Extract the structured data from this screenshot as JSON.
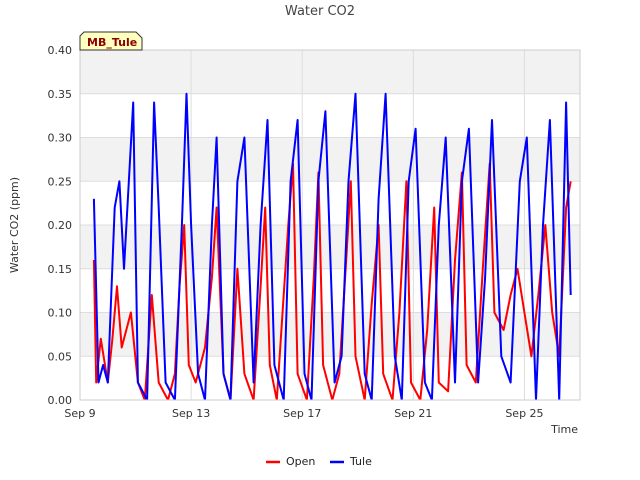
{
  "chart_data": {
    "type": "line",
    "title": "Water CO2",
    "xlabel": "Time",
    "ylabel": "Water CO2 (ppm)",
    "ylim": [
      0,
      0.4
    ],
    "yticks": [
      "0.00",
      "0.05",
      "0.10",
      "0.15",
      "0.20",
      "0.25",
      "0.30",
      "0.35",
      "0.40"
    ],
    "xlim": [
      "2023-09-09",
      "2023-09-27"
    ],
    "xticks": [
      {
        "label": "Sep 9",
        "date": "2023-09-09"
      },
      {
        "label": "Sep 13",
        "date": "2023-09-13"
      },
      {
        "label": "Sep 17",
        "date": "2023-09-17"
      },
      {
        "label": "Sep 21",
        "date": "2023-09-21"
      },
      {
        "label": "Sep 25",
        "date": "2023-09-25"
      }
    ],
    "grid": true,
    "legend": "bottom",
    "site_label": "MB_Tule",
    "series": [
      {
        "name": "Open",
        "color": "#ff0000",
        "points": [
          [
            "2023-09-09 12:00",
            0.16
          ],
          [
            "2023-09-09 14:00",
            0.02
          ],
          [
            "2023-09-09 18:00",
            0.07
          ],
          [
            "2023-09-10 00:00",
            0.02
          ],
          [
            "2023-09-10 04:00",
            0.07
          ],
          [
            "2023-09-10 08:00",
            0.13
          ],
          [
            "2023-09-10 12:00",
            0.06
          ],
          [
            "2023-09-10 20:00",
            0.1
          ],
          [
            "2023-09-11 02:00",
            0.02
          ],
          [
            "2023-09-11 08:00",
            0.0
          ],
          [
            "2023-09-11 14:00",
            0.12
          ],
          [
            "2023-09-11 20:00",
            0.02
          ],
          [
            "2023-09-12 04:00",
            0.0
          ],
          [
            "2023-09-12 10:00",
            0.03
          ],
          [
            "2023-09-12 14:00",
            0.13
          ],
          [
            "2023-09-12 18:00",
            0.2
          ],
          [
            "2023-09-12 22:00",
            0.04
          ],
          [
            "2023-09-13 04:00",
            0.02
          ],
          [
            "2023-09-13 12:00",
            0.06
          ],
          [
            "2023-09-13 18:00",
            0.14
          ],
          [
            "2023-09-13 22:00",
            0.22
          ],
          [
            "2023-09-14 04:00",
            0.03
          ],
          [
            "2023-09-14 10:00",
            0.0
          ],
          [
            "2023-09-14 16:00",
            0.15
          ],
          [
            "2023-09-14 22:00",
            0.03
          ],
          [
            "2023-09-15 06:00",
            0.0
          ],
          [
            "2023-09-15 12:00",
            0.13
          ],
          [
            "2023-09-15 16:00",
            0.22
          ],
          [
            "2023-09-15 20:00",
            0.04
          ],
          [
            "2023-09-16 02:00",
            0.0
          ],
          [
            "2023-09-16 08:00",
            0.12
          ],
          [
            "2023-09-16 12:00",
            0.2
          ],
          [
            "2023-09-16 16:00",
            0.27
          ],
          [
            "2023-09-16 20:00",
            0.03
          ],
          [
            "2023-09-17 04:00",
            0.0
          ],
          [
            "2023-09-17 10:00",
            0.14
          ],
          [
            "2023-09-17 14:00",
            0.26
          ],
          [
            "2023-09-17 18:00",
            0.04
          ],
          [
            "2023-09-18 02:00",
            0.0
          ],
          [
            "2023-09-18 08:00",
            0.03
          ],
          [
            "2023-09-18 14:00",
            0.16
          ],
          [
            "2023-09-18 18:00",
            0.25
          ],
          [
            "2023-09-18 22:00",
            0.05
          ],
          [
            "2023-09-19 06:00",
            0.0
          ],
          [
            "2023-09-19 12:00",
            0.11
          ],
          [
            "2023-09-19 18:00",
            0.2
          ],
          [
            "2023-09-19 22:00",
            0.03
          ],
          [
            "2023-09-20 06:00",
            0.0
          ],
          [
            "2023-09-20 12:00",
            0.1
          ],
          [
            "2023-09-20 18:00",
            0.25
          ],
          [
            "2023-09-20 22:00",
            0.02
          ],
          [
            "2023-09-21 06:00",
            0.0
          ],
          [
            "2023-09-21 12:00",
            0.08
          ],
          [
            "2023-09-21 18:00",
            0.22
          ],
          [
            "2023-09-21 22:00",
            0.02
          ],
          [
            "2023-09-22 06:00",
            0.01
          ],
          [
            "2023-09-22 12:00",
            0.16
          ],
          [
            "2023-09-22 18:00",
            0.26
          ],
          [
            "2023-09-22 22:00",
            0.04
          ],
          [
            "2023-09-23 06:00",
            0.02
          ],
          [
            "2023-09-23 12:00",
            0.15
          ],
          [
            "2023-09-23 18:00",
            0.27
          ],
          [
            "2023-09-23 22:00",
            0.1
          ],
          [
            "2023-09-24 06:00",
            0.08
          ],
          [
            "2023-09-24 12:00",
            0.12
          ],
          [
            "2023-09-24 18:00",
            0.15
          ],
          [
            "2023-09-25 00:00",
            0.1
          ],
          [
            "2023-09-25 06:00",
            0.05
          ],
          [
            "2023-09-25 12:00",
            0.12
          ],
          [
            "2023-09-25 18:00",
            0.2
          ],
          [
            "2023-09-26 00:00",
            0.1
          ],
          [
            "2023-09-26 06:00",
            0.05
          ],
          [
            "2023-09-26 12:00",
            0.22
          ],
          [
            "2023-09-26 16:00",
            0.25
          ]
        ]
      },
      {
        "name": "Tule",
        "color": "#0000ff",
        "points": [
          [
            "2023-09-09 12:00",
            0.23
          ],
          [
            "2023-09-09 16:00",
            0.02
          ],
          [
            "2023-09-09 20:00",
            0.04
          ],
          [
            "2023-09-10 00:00",
            0.02
          ],
          [
            "2023-09-10 06:00",
            0.22
          ],
          [
            "2023-09-10 10:00",
            0.25
          ],
          [
            "2023-09-10 14:00",
            0.15
          ],
          [
            "2023-09-10 22:00",
            0.34
          ],
          [
            "2023-09-11 02:00",
            0.02
          ],
          [
            "2023-09-11 10:00",
            0.0
          ],
          [
            "2023-09-11 16:00",
            0.34
          ],
          [
            "2023-09-11 20:00",
            0.22
          ],
          [
            "2023-09-12 02:00",
            0.02
          ],
          [
            "2023-09-12 10:00",
            0.0
          ],
          [
            "2023-09-12 16:00",
            0.2
          ],
          [
            "2023-09-12 20:00",
            0.35
          ],
          [
            "2023-09-13 00:00",
            0.2
          ],
          [
            "2023-09-13 06:00",
            0.03
          ],
          [
            "2023-09-13 12:00",
            0.0
          ],
          [
            "2023-09-13 18:00",
            0.2
          ],
          [
            "2023-09-13 22:00",
            0.3
          ],
          [
            "2023-09-14 04:00",
            0.03
          ],
          [
            "2023-09-14 10:00",
            0.0
          ],
          [
            "2023-09-14 16:00",
            0.25
          ],
          [
            "2023-09-14 22:00",
            0.3
          ],
          [
            "2023-09-15 06:00",
            0.02
          ],
          [
            "2023-09-15 12:00",
            0.2
          ],
          [
            "2023-09-15 18:00",
            0.32
          ],
          [
            "2023-09-16 00:00",
            0.04
          ],
          [
            "2023-09-16 08:00",
            0.0
          ],
          [
            "2023-09-16 14:00",
            0.25
          ],
          [
            "2023-09-16 20:00",
            0.32
          ],
          [
            "2023-09-17 02:00",
            0.03
          ],
          [
            "2023-09-17 08:00",
            0.0
          ],
          [
            "2023-09-17 14:00",
            0.25
          ],
          [
            "2023-09-17 20:00",
            0.33
          ],
          [
            "2023-09-18 04:00",
            0.02
          ],
          [
            "2023-09-18 10:00",
            0.05
          ],
          [
            "2023-09-18 16:00",
            0.25
          ],
          [
            "2023-09-18 22:00",
            0.35
          ],
          [
            "2023-09-19 06:00",
            0.03
          ],
          [
            "2023-09-19 12:00",
            0.0
          ],
          [
            "2023-09-19 18:00",
            0.23
          ],
          [
            "2023-09-20 00:00",
            0.35
          ],
          [
            "2023-09-20 08:00",
            0.05
          ],
          [
            "2023-09-20 14:00",
            0.0
          ],
          [
            "2023-09-20 20:00",
            0.25
          ],
          [
            "2023-09-21 02:00",
            0.31
          ],
          [
            "2023-09-21 10:00",
            0.02
          ],
          [
            "2023-09-21 16:00",
            0.0
          ],
          [
            "2023-09-21 22:00",
            0.2
          ],
          [
            "2023-09-22 04:00",
            0.3
          ],
          [
            "2023-09-22 12:00",
            0.02
          ],
          [
            "2023-09-22 18:00",
            0.25
          ],
          [
            "2023-09-23 00:00",
            0.31
          ],
          [
            "2023-09-23 08:00",
            0.02
          ],
          [
            "2023-09-23 14:00",
            0.14
          ],
          [
            "2023-09-23 20:00",
            0.32
          ],
          [
            "2023-09-24 04:00",
            0.05
          ],
          [
            "2023-09-24 12:00",
            0.02
          ],
          [
            "2023-09-24 20:00",
            0.25
          ],
          [
            "2023-09-25 02:00",
            0.3
          ],
          [
            "2023-09-25 10:00",
            0.0
          ],
          [
            "2023-09-25 16:00",
            0.2
          ],
          [
            "2023-09-25 22:00",
            0.32
          ],
          [
            "2023-09-26 06:00",
            0.0
          ],
          [
            "2023-09-26 12:00",
            0.34
          ],
          [
            "2023-09-26 16:00",
            0.12
          ]
        ]
      }
    ]
  }
}
